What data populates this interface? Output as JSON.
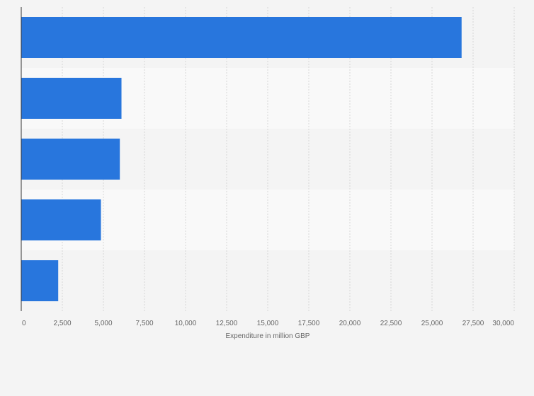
{
  "chart_data": {
    "type": "bar",
    "orientation": "horizontal",
    "categories": [
      "",
      "",
      "",
      "",
      ""
    ],
    "values": [
      26800,
      6100,
      6000,
      4850,
      2250
    ],
    "xlabel": "Expenditure in million GBP",
    "ylabel": "",
    "xlim": [
      0,
      30000
    ],
    "xticks": [
      0,
      2500,
      5000,
      7500,
      10000,
      12500,
      15000,
      17500,
      20000,
      22500,
      25000,
      27500,
      30000
    ],
    "xtick_labels": [
      "0",
      "2,500",
      "5,000",
      "7,500",
      "10,000",
      "12,500",
      "15,000",
      "17,500",
      "20,000",
      "22,500",
      "25,000",
      "27,500",
      "30,000"
    ],
    "grid": true,
    "bar_color": "#2876dd",
    "background_color": "#f4f4f4",
    "band_color": "#f9f9f9"
  }
}
